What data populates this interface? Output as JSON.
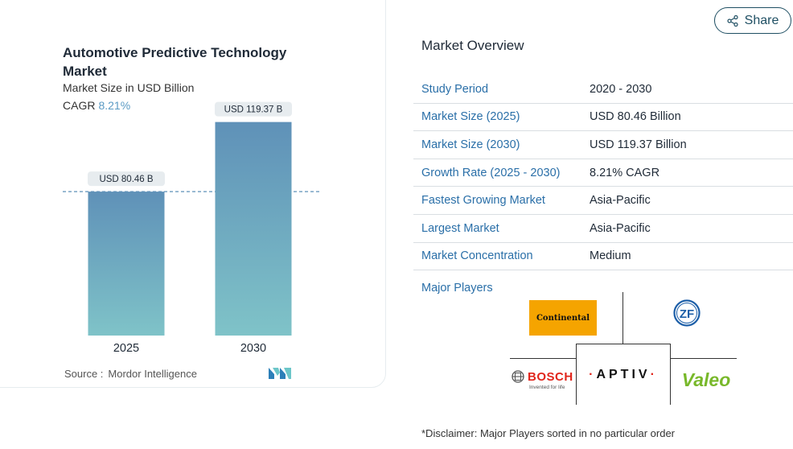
{
  "chart_card": {
    "title": "Automotive Predictive Technology Market",
    "subtitle": "Market Size in USD Billion",
    "cagr_label": "CAGR",
    "cagr_value": "8.21%",
    "source_label": "Source :",
    "source_value": "Mordor Intelligence"
  },
  "chart_data": {
    "type": "bar",
    "categories": [
      "2025",
      "2030"
    ],
    "values": [
      80.46,
      119.37
    ],
    "data_labels": [
      "USD 80.46 B",
      "USD 119.37 B"
    ],
    "title": "Automotive Predictive Technology Market",
    "xlabel": "",
    "ylabel": "",
    "ylim": [
      0,
      130
    ],
    "reference_line": 80.46,
    "colors": {
      "bar_top": "#5f91b8",
      "bar_bottom": "#7fc3c8",
      "label_bg": "#e7ecef",
      "ref_line": "#5f91b8"
    }
  },
  "share_button": {
    "label": "Share"
  },
  "overview": {
    "title": "Market Overview",
    "rows": [
      {
        "key": "Study Period",
        "value": "2020 - 2030"
      },
      {
        "key": "Market Size (2025)",
        "value": "USD 80.46 Billion"
      },
      {
        "key": "Market Size (2030)",
        "value": "USD 119.37 Billion"
      },
      {
        "key": "Growth Rate (2025 - 2030)",
        "value": "8.21% CAGR"
      },
      {
        "key": "Fastest Growing Market",
        "value": "Asia-Pacific"
      },
      {
        "key": "Largest Market",
        "value": "Asia-Pacific"
      },
      {
        "key": "Market Concentration",
        "value": "Medium"
      }
    ]
  },
  "major_players": {
    "title": "Major Players",
    "logos": {
      "continental": "Continental",
      "zf": "ZF",
      "aptiv": "APTIV",
      "bosch": "BOSCH",
      "bosch_tagline": "Invented for life",
      "valeo": "Valeo"
    },
    "disclaimer": "*Disclaimer: Major Players sorted in no particular order"
  },
  "accent_colors": {
    "link_blue": "#2a6fa8",
    "cagr_blue": "#5b9bc4",
    "bosch_red": "#e1251b",
    "valeo_green": "#78b82a",
    "conti_orange": "#f5a400"
  }
}
